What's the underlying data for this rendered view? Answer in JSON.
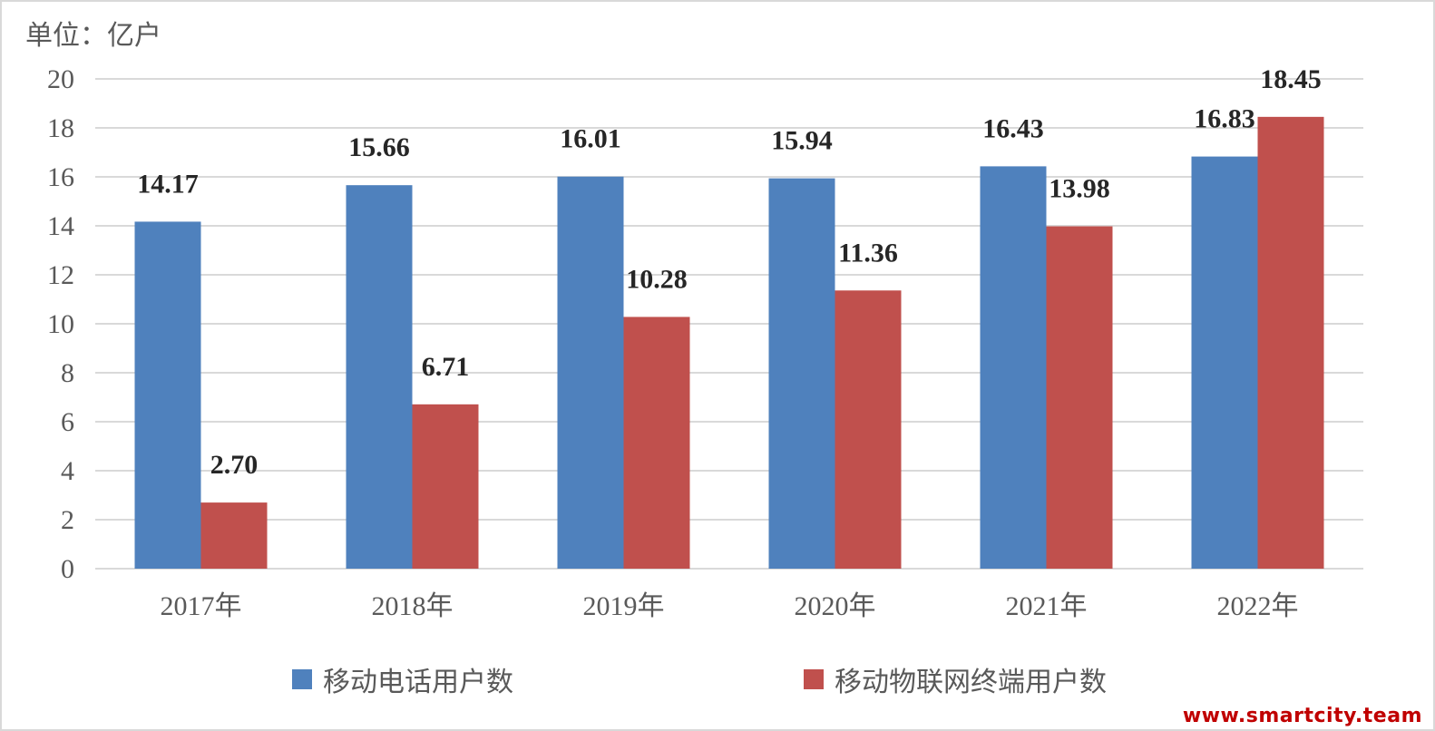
{
  "unit_label": "单位：亿户",
  "watermark": "www.smartcity.team",
  "colors": {
    "series1": "#4f81bd",
    "series2": "#c0504d",
    "grid": "#d9d9d9",
    "text": "#595959"
  },
  "chart_data": {
    "type": "bar",
    "categories": [
      "2017年",
      "2018年",
      "2019年",
      "2020年",
      "2021年",
      "2022年"
    ],
    "series": [
      {
        "name": "移动电话用户数",
        "values": [
          14.17,
          15.66,
          16.01,
          15.94,
          16.43,
          16.83
        ],
        "labels": [
          "14.17",
          "15.66",
          "16.01",
          "15.94",
          "16.43",
          "16.83"
        ]
      },
      {
        "name": "移动物联网终端用户数",
        "values": [
          2.7,
          6.71,
          10.28,
          11.36,
          13.98,
          18.45
        ],
        "labels": [
          "2.70",
          "6.71",
          "10.28",
          "11.36",
          "13.98",
          "18.45"
        ]
      }
    ],
    "ylim": [
      0,
      20
    ],
    "yticks": [
      0,
      2,
      4,
      6,
      8,
      10,
      12,
      14,
      16,
      18,
      20
    ],
    "grid": true,
    "legend": "bottom"
  }
}
